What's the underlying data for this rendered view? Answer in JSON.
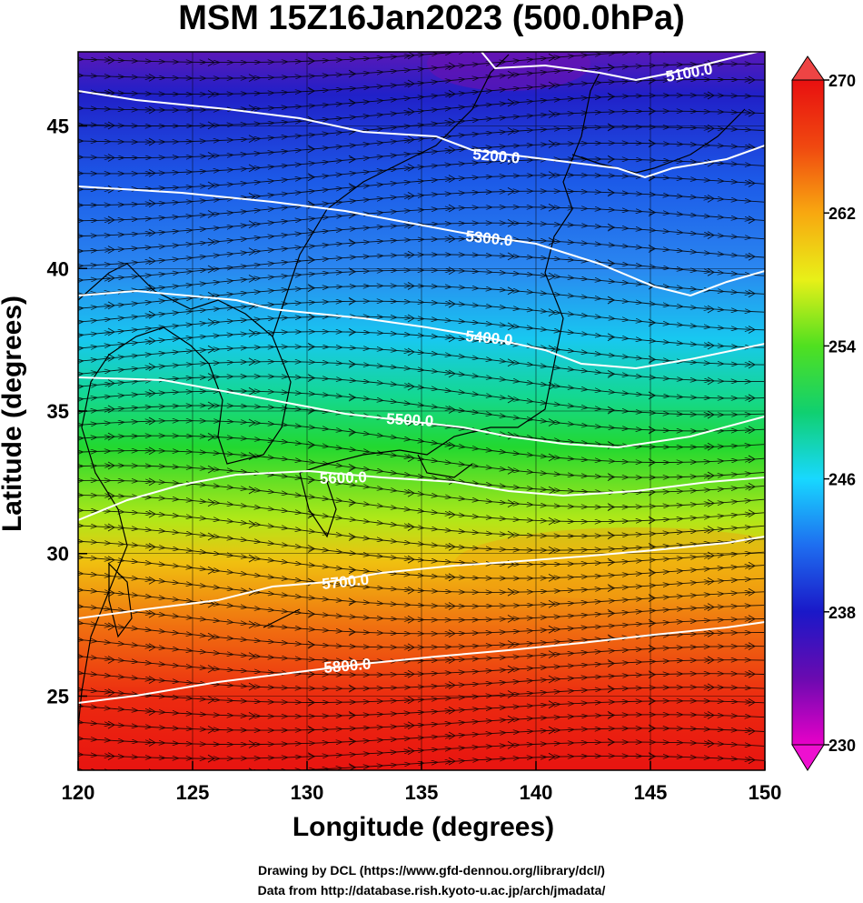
{
  "title": "MSM 15Z16Jan2023 (500.0hPa)",
  "xaxis": {
    "label": "Longitude (degrees)",
    "ticks": [
      "120",
      "125",
      "130",
      "135",
      "140",
      "145",
      "150"
    ],
    "range": [
      120,
      150
    ]
  },
  "yaxis": {
    "label": "Latitude  (degrees)",
    "ticks": [
      "25",
      "30",
      "35",
      "40",
      "45"
    ],
    "range": [
      22.4,
      47.6
    ]
  },
  "contours": [
    {
      "label": "5100.0"
    },
    {
      "label": "5200.0"
    },
    {
      "label": "5300.0"
    },
    {
      "label": "5400.0"
    },
    {
      "label": "5500.0"
    },
    {
      "label": "5600.0"
    },
    {
      "label": "5700.0"
    },
    {
      "label": "5800.0"
    }
  ],
  "colorbar": {
    "ticks": [
      "270",
      "262",
      "254",
      "246",
      "238",
      "230"
    ],
    "range": [
      230,
      270
    ],
    "colors": [
      "#e800c8",
      "#6a0ab0",
      "#1a18c8",
      "#1e6ef0",
      "#18d8ff",
      "#10d070",
      "#50e020",
      "#e8f018",
      "#f8a810",
      "#f04810",
      "#e81010"
    ]
  },
  "footer": {
    "line1": "Drawing by DCL (https://www.gfd-dennou.org/library/dcl/)",
    "line2": "Data from http://database.rish.kyoto-u.ac.jp/arch/jmadata/"
  }
}
